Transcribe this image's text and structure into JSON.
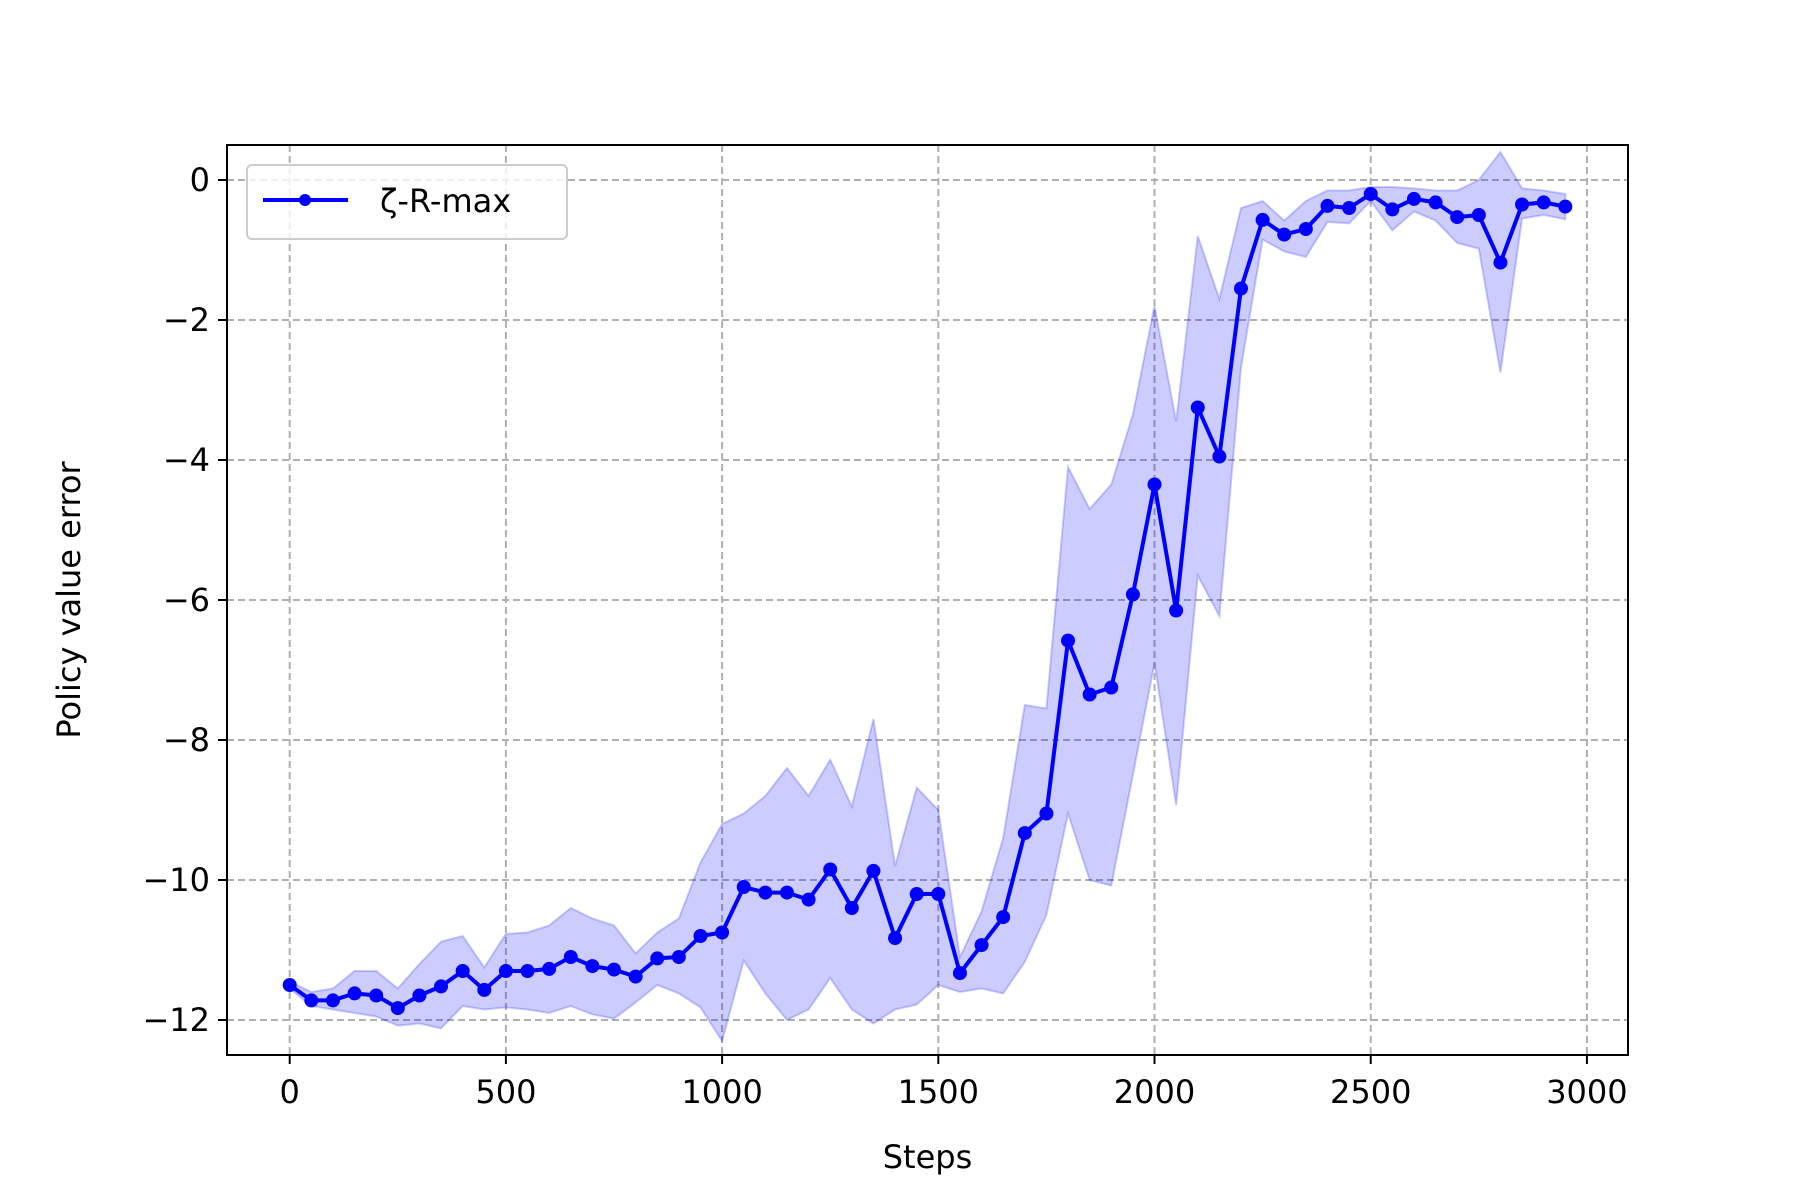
{
  "chart_data": {
    "type": "line",
    "title": "",
    "xlabel": "Steps",
    "ylabel": "Policy value error",
    "xlim": [
      -145,
      3095
    ],
    "ylim": [
      -12.5,
      0.5
    ],
    "xticks": [
      0,
      500,
      1000,
      1500,
      2000,
      2500,
      3000
    ],
    "xtick_labels": [
      "0",
      "500",
      "1000",
      "1500",
      "2000",
      "2500",
      "3000"
    ],
    "yticks": [
      0,
      -2,
      -4,
      -6,
      -8,
      -10,
      -12
    ],
    "ytick_labels": [
      "0",
      "−2",
      "−4",
      "−6",
      "−8",
      "−10",
      "−12"
    ],
    "grid": true,
    "legend_position": "upper-left",
    "series": [
      {
        "name": "ζ-R-max",
        "color": "#0000ff",
        "band_color": "#0000ff",
        "x": [
          0,
          50,
          100,
          150,
          200,
          250,
          300,
          350,
          400,
          450,
          500,
          550,
          600,
          650,
          700,
          750,
          800,
          850,
          900,
          950,
          1000,
          1050,
          1100,
          1150,
          1200,
          1250,
          1300,
          1350,
          1400,
          1450,
          1500,
          1550,
          1600,
          1650,
          1700,
          1750,
          1800,
          1850,
          1900,
          1950,
          2000,
          2050,
          2100,
          2150,
          2200,
          2250,
          2300,
          2350,
          2400,
          2450,
          2500,
          2550,
          2600,
          2650,
          2700,
          2750,
          2800,
          2850,
          2900,
          2950
        ],
        "y": [
          -11.5,
          -11.72,
          -11.72,
          -11.62,
          -11.65,
          -11.83,
          -11.65,
          -11.52,
          -11.3,
          -11.57,
          -11.3,
          -11.3,
          -11.27,
          -11.1,
          -11.23,
          -11.28,
          -11.38,
          -11.12,
          -11.1,
          -10.8,
          -10.75,
          -10.1,
          -10.18,
          -10.18,
          -10.28,
          -9.85,
          -10.4,
          -9.87,
          -10.83,
          -10.2,
          -10.2,
          -11.33,
          -10.93,
          -10.53,
          -9.33,
          -9.05,
          -6.58,
          -7.35,
          -7.25,
          -5.92,
          -4.35,
          -6.15,
          -3.25,
          -3.95,
          -1.55,
          -0.57,
          -0.78,
          -0.7,
          -0.37,
          -0.4,
          -0.2,
          -0.42,
          -0.27,
          -0.32,
          -0.53,
          -0.5,
          -1.18,
          -0.35,
          -0.32,
          -0.38
        ],
        "upper": [
          -11.45,
          -11.6,
          -11.55,
          -11.3,
          -11.3,
          -11.55,
          -11.2,
          -10.88,
          -10.8,
          -11.25,
          -10.77,
          -10.75,
          -10.65,
          -10.4,
          -10.55,
          -10.65,
          -11.05,
          -10.75,
          -10.55,
          -9.75,
          -9.2,
          -9.05,
          -8.8,
          -8.4,
          -8.8,
          -8.28,
          -8.95,
          -7.7,
          -9.8,
          -8.68,
          -9,
          -11.1,
          -10.45,
          -9.4,
          -7.5,
          -7.55,
          -4.1,
          -4.7,
          -4.35,
          -3.35,
          -1.8,
          -3.45,
          -0.8,
          -1.7,
          -0.4,
          -0.3,
          -0.58,
          -0.3,
          -0.15,
          -0.15,
          -0.1,
          -0.1,
          -0.12,
          -0.15,
          -0.15,
          0,
          0.4,
          -0.12,
          -0.15,
          -0.2
        ],
        "lower": [
          -11.55,
          -11.8,
          -11.85,
          -11.9,
          -11.95,
          -12.08,
          -12.05,
          -12.12,
          -11.8,
          -11.85,
          -11.82,
          -11.85,
          -11.9,
          -11.8,
          -11.92,
          -11.98,
          -11.75,
          -11.5,
          -11.62,
          -11.82,
          -12.3,
          -11.15,
          -11.62,
          -12,
          -11.85,
          -11.4,
          -11.85,
          -12.05,
          -11.85,
          -11.78,
          -11.5,
          -11.6,
          -11.55,
          -11.62,
          -11.17,
          -10.5,
          -9.05,
          -10,
          -10.08,
          -8.5,
          -6.9,
          -8.93,
          -5.65,
          -6.23,
          -2.68,
          -0.85,
          -1.02,
          -1.1,
          -0.6,
          -0.62,
          -0.3,
          -0.72,
          -0.45,
          -0.58,
          -0.9,
          -0.98,
          -2.75,
          -0.55,
          -0.5,
          -0.56
        ]
      }
    ]
  }
}
